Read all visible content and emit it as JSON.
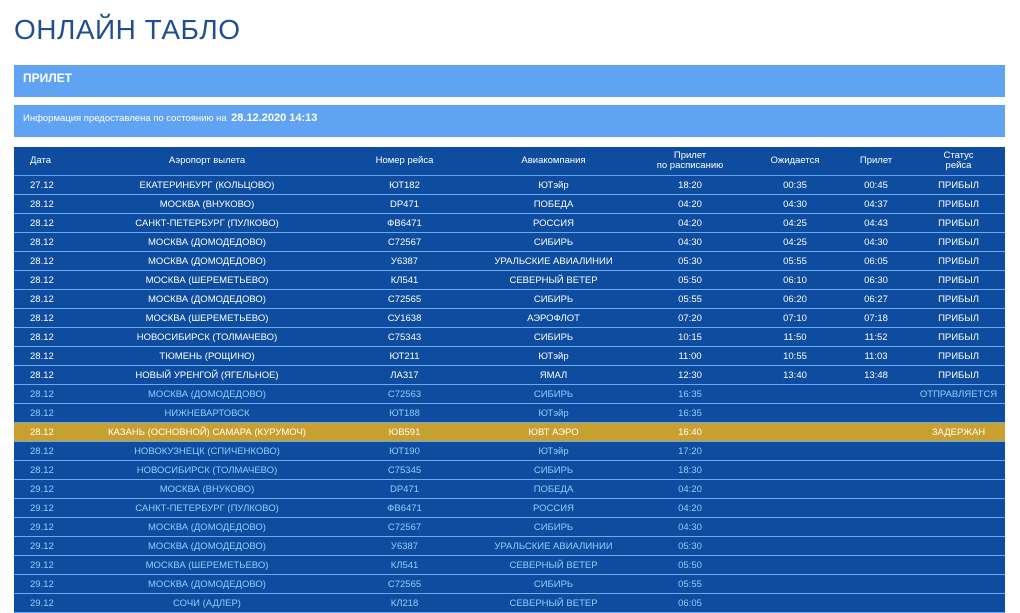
{
  "title": "ОНЛАЙН ТАБЛО",
  "section": "ПРИЛЕТ",
  "info": {
    "label": "Информация предоставлена по состоянию на",
    "datetime": "28.12.2020 14:13"
  },
  "columns": {
    "date": "Дата",
    "airport": "Аэропорт вылета",
    "flight": "Номер рейса",
    "airline": "Авиакомпания",
    "scheduled_line1": "Прилет",
    "scheduled_line2": "по расписанию",
    "expected": "Ожидается",
    "arrival": "Прилет",
    "status_line1": "Статус",
    "status_line2": "рейса"
  },
  "colors": {
    "header_bar": "#5fa3f2",
    "table_bg": "#0d4c9e",
    "delayed_row": "#c8a030",
    "upcoming_text": "#8fd0ff"
  },
  "flights": [
    {
      "date": "27.12",
      "airport": "ЕКАТЕРИНБУРГ (КОЛЬЦОВО)",
      "flight": "ЮТ182",
      "airline": "ЮТэйр",
      "scheduled": "18:20",
      "expected": "00:35",
      "arrival": "00:45",
      "status": "ПРИБЫЛ",
      "state": "arrived"
    },
    {
      "date": "28.12",
      "airport": "МОСКВА (ВНУКОВО)",
      "flight": "DP471",
      "airline": "ПОБЕДА",
      "scheduled": "04:20",
      "expected": "04:30",
      "arrival": "04:37",
      "status": "ПРИБЫЛ",
      "state": "arrived"
    },
    {
      "date": "28.12",
      "airport": "САНКТ-ПЕТЕРБУРГ (ПУЛКОВО)",
      "flight": "ФВ6471",
      "airline": "РОССИЯ",
      "scheduled": "04:20",
      "expected": "04:25",
      "arrival": "04:43",
      "status": "ПРИБЫЛ",
      "state": "arrived"
    },
    {
      "date": "28.12",
      "airport": "МОСКВА (ДОМОДЕДОВО)",
      "flight": "С72567",
      "airline": "СИБИРЬ",
      "scheduled": "04:30",
      "expected": "04:25",
      "arrival": "04:30",
      "status": "ПРИБЫЛ",
      "state": "arrived"
    },
    {
      "date": "28.12",
      "airport": "МОСКВА (ДОМОДЕДОВО)",
      "flight": "У6387",
      "airline": "УРАЛЬСКИЕ АВИАЛИНИИ",
      "scheduled": "05:30",
      "expected": "05:55",
      "arrival": "06:05",
      "status": "ПРИБЫЛ",
      "state": "arrived"
    },
    {
      "date": "28.12",
      "airport": "МОСКВА (ШЕРЕМЕТЬЕВО)",
      "flight": "КЛ541",
      "airline": "СЕВЕРНЫЙ ВЕТЕР",
      "scheduled": "05:50",
      "expected": "06:10",
      "arrival": "06:30",
      "status": "ПРИБЫЛ",
      "state": "arrived"
    },
    {
      "date": "28.12",
      "airport": "МОСКВА (ДОМОДЕДОВО)",
      "flight": "С72565",
      "airline": "СИБИРЬ",
      "scheduled": "05:55",
      "expected": "06:20",
      "arrival": "06:27",
      "status": "ПРИБЫЛ",
      "state": "arrived"
    },
    {
      "date": "28.12",
      "airport": "МОСКВА (ШЕРЕМЕТЬЕВО)",
      "flight": "СУ1638",
      "airline": "АЭРОФЛОТ",
      "scheduled": "07:20",
      "expected": "07:10",
      "arrival": "07:18",
      "status": "ПРИБЫЛ",
      "state": "arrived"
    },
    {
      "date": "28.12",
      "airport": "НОВОСИБИРСК (ТОЛМАЧЕВО)",
      "flight": "С75343",
      "airline": "СИБИРЬ",
      "scheduled": "10:15",
      "expected": "11:50",
      "arrival": "11:52",
      "status": "ПРИБЫЛ",
      "state": "arrived"
    },
    {
      "date": "28.12",
      "airport": "ТЮМЕНЬ (РОЩИНО)",
      "flight": "ЮТ211",
      "airline": "ЮТэйр",
      "scheduled": "11:00",
      "expected": "10:55",
      "arrival": "11:03",
      "status": "ПРИБЫЛ",
      "state": "arrived"
    },
    {
      "date": "28.12",
      "airport": "НОВЫЙ УРЕНГОЙ (ЯГЕЛЬНОЕ)",
      "flight": "ЛА317",
      "airline": "ЯМАЛ",
      "scheduled": "12:30",
      "expected": "13:40",
      "arrival": "13:48",
      "status": "ПРИБЫЛ",
      "state": "arrived"
    },
    {
      "date": "28.12",
      "airport": "МОСКВА (ДОМОДЕДОВО)",
      "flight": "С72563",
      "airline": "СИБИРЬ",
      "scheduled": "16:35",
      "expected": "",
      "arrival": "",
      "status": "ОТПРАВЛЯЕТСЯ",
      "state": "upcoming"
    },
    {
      "date": "28.12",
      "airport": "НИЖНЕВАРТОВСК",
      "flight": "ЮТ188",
      "airline": "ЮТэйр",
      "scheduled": "16:35",
      "expected": "",
      "arrival": "",
      "status": "",
      "state": "upcoming"
    },
    {
      "date": "28.12",
      "airport": "КАЗАНЬ (ОСНОВНОЙ) САМАРА (КУРУМОЧ)",
      "flight": "ЮВ591",
      "airline": "ЮВТ АЭРО",
      "scheduled": "16:40",
      "expected": "",
      "arrival": "",
      "status": "ЗАДЕРЖАН",
      "state": "delayed"
    },
    {
      "date": "28.12",
      "airport": "НОВОКУЗНЕЦК (СПИЧЕНКОВО)",
      "flight": "ЮТ190",
      "airline": "ЮТэйр",
      "scheduled": "17:20",
      "expected": "",
      "arrival": "",
      "status": "",
      "state": "upcoming"
    },
    {
      "date": "28.12",
      "airport": "НОВОСИБИРСК (ТОЛМАЧЕВО)",
      "flight": "С75345",
      "airline": "СИБИРЬ",
      "scheduled": "18:30",
      "expected": "",
      "arrival": "",
      "status": "",
      "state": "upcoming"
    },
    {
      "date": "29.12",
      "airport": "МОСКВА (ВНУКОВО)",
      "flight": "DP471",
      "airline": "ПОБЕДА",
      "scheduled": "04:20",
      "expected": "",
      "arrival": "",
      "status": "",
      "state": "upcoming"
    },
    {
      "date": "29.12",
      "airport": "САНКТ-ПЕТЕРБУРГ (ПУЛКОВО)",
      "flight": "ФВ6471",
      "airline": "РОССИЯ",
      "scheduled": "04:20",
      "expected": "",
      "arrival": "",
      "status": "",
      "state": "upcoming"
    },
    {
      "date": "29.12",
      "airport": "МОСКВА (ДОМОДЕДОВО)",
      "flight": "С72567",
      "airline": "СИБИРЬ",
      "scheduled": "04:30",
      "expected": "",
      "arrival": "",
      "status": "",
      "state": "upcoming"
    },
    {
      "date": "29.12",
      "airport": "МОСКВА (ДОМОДЕДОВО)",
      "flight": "У6387",
      "airline": "УРАЛЬСКИЕ АВИАЛИНИИ",
      "scheduled": "05:30",
      "expected": "",
      "arrival": "",
      "status": "",
      "state": "upcoming"
    },
    {
      "date": "29.12",
      "airport": "МОСКВА (ШЕРЕМЕТЬЕВО)",
      "flight": "КЛ541",
      "airline": "СЕВЕРНЫЙ ВЕТЕР",
      "scheduled": "05:50",
      "expected": "",
      "arrival": "",
      "status": "",
      "state": "upcoming"
    },
    {
      "date": "29.12",
      "airport": "МОСКВА (ДОМОДЕДОВО)",
      "flight": "С72565",
      "airline": "СИБИРЬ",
      "scheduled": "05:55",
      "expected": "",
      "arrival": "",
      "status": "",
      "state": "upcoming"
    },
    {
      "date": "29.12",
      "airport": "СОЧИ (АДЛЕР)",
      "flight": "КЛ218",
      "airline": "СЕВЕРНЫЙ ВЕТЕР",
      "scheduled": "06:05",
      "expected": "",
      "arrival": "",
      "status": "",
      "state": "upcoming"
    }
  ]
}
